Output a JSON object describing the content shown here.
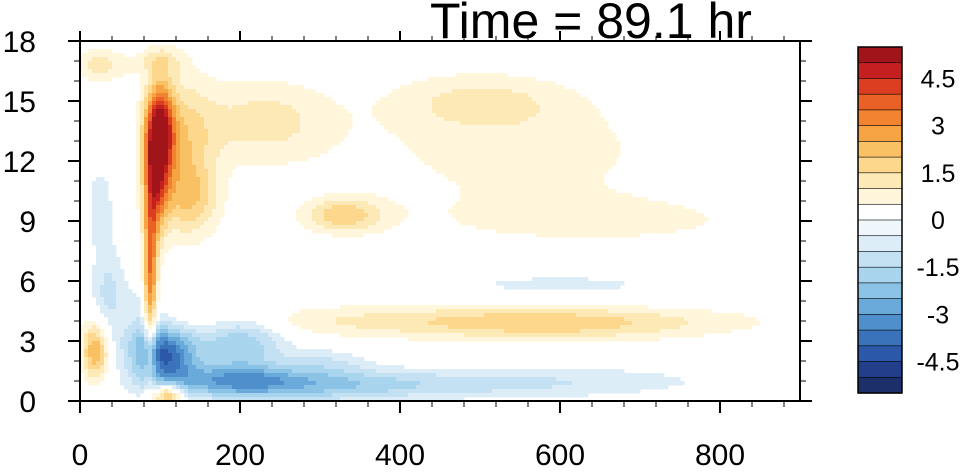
{
  "chart_data": {
    "type": "heatmap",
    "title": "Time = 89.1 hr",
    "xlabel": "",
    "ylabel": "",
    "xlim": [
      0,
      900
    ],
    "ylim": [
      0,
      18
    ],
    "x_ticks": [
      {
        "value": 0,
        "label": "0"
      },
      {
        "value": 200,
        "label": "200"
      },
      {
        "value": 400,
        "label": "400"
      },
      {
        "value": 600,
        "label": "600"
      },
      {
        "value": 800,
        "label": "800"
      }
    ],
    "y_ticks": [
      {
        "value": 0,
        "label": "0"
      },
      {
        "value": 3,
        "label": "3"
      },
      {
        "value": 6,
        "label": "6"
      },
      {
        "value": 9,
        "label": "9"
      },
      {
        "value": 12,
        "label": "12"
      },
      {
        "value": 15,
        "label": "15"
      },
      {
        "value": 18,
        "label": "18"
      }
    ],
    "colorbar": {
      "levels": [
        -5.5,
        -5,
        -4.5,
        -4,
        -3.5,
        -3,
        -2.5,
        -2,
        -1.5,
        -1,
        -0.5,
        0,
        0.5,
        1,
        1.5,
        2,
        2.5,
        3,
        3.5,
        4,
        4.5,
        5,
        5.5
      ],
      "colors": [
        "#1c2f6b",
        "#233f8c",
        "#2b58a8",
        "#3a73ba",
        "#4f8fcc",
        "#6aaada",
        "#8bc3e6",
        "#a8d4ee",
        "#c3e1f3",
        "#dcedf8",
        "#f0f7fc",
        "#ffffff",
        "#fff6dc",
        "#fde9b6",
        "#fcd78c",
        "#f9c064",
        "#f6a343",
        "#f28431",
        "#ea6125",
        "#db3d20",
        "#c4201f",
        "#a11419"
      ],
      "tick_labels": [
        {
          "value": 4.5,
          "label": "4.5"
        },
        {
          "value": 3,
          "label": "3"
        },
        {
          "value": 1.5,
          "label": "1.5"
        },
        {
          "value": 0,
          "label": "0"
        },
        {
          "value": -1.5,
          "label": "-1.5"
        },
        {
          "value": -3,
          "label": "-3"
        },
        {
          "value": -4.5,
          "label": "-4.5"
        }
      ]
    },
    "features": [
      {
        "x": 100,
        "y": 13.5,
        "sx": 12,
        "sy": 1.6,
        "amp": 4.5
      },
      {
        "x": 95,
        "y": 11.0,
        "sx": 10,
        "sy": 2.0,
        "amp": 3.0
      },
      {
        "x": 88,
        "y": 6.0,
        "sx": 6,
        "sy": 3.0,
        "amp": 3.5
      },
      {
        "x": 125,
        "y": 12.5,
        "sx": 30,
        "sy": 2.5,
        "amp": 1.8
      },
      {
        "x": 140,
        "y": 10.0,
        "sx": 25,
        "sy": 1.2,
        "amp": 1.2
      },
      {
        "x": 20,
        "y": 2.5,
        "sx": 12,
        "sy": 1.0,
        "amp": 2.8
      },
      {
        "x": 25,
        "y": 16.8,
        "sx": 25,
        "sy": 0.6,
        "amp": 1.2
      },
      {
        "x": 110,
        "y": 0.3,
        "sx": 12,
        "sy": 0.4,
        "amp": 3.0
      },
      {
        "x": 330,
        "y": 9.3,
        "sx": 35,
        "sy": 0.6,
        "amp": 1.8
      },
      {
        "x": 230,
        "y": 14.0,
        "sx": 60,
        "sy": 1.5,
        "amp": 1.2
      },
      {
        "x": 500,
        "y": 15.0,
        "sx": 80,
        "sy": 1.0,
        "amp": 1.0
      },
      {
        "x": 550,
        "y": 12.5,
        "sx": 150,
        "sy": 2.0,
        "amp": 0.7
      },
      {
        "x": 650,
        "y": 9.0,
        "sx": 180,
        "sy": 1.0,
        "amp": 0.6
      },
      {
        "x": 480,
        "y": 4.0,
        "sx": 250,
        "sy": 0.6,
        "amp": 1.2
      },
      {
        "x": 600,
        "y": 3.8,
        "sx": 120,
        "sy": 0.6,
        "amp": 0.9
      },
      {
        "x": 110,
        "y": 2.3,
        "sx": 25,
        "sy": 1.0,
        "amp": -3.5
      },
      {
        "x": 80,
        "y": 3.2,
        "sx": 20,
        "sy": 1.5,
        "amp": -1.5
      },
      {
        "x": 200,
        "y": 3.0,
        "sx": 40,
        "sy": 1.0,
        "amp": -2.0
      },
      {
        "x": 190,
        "y": 1.0,
        "sx": 60,
        "sy": 0.6,
        "amp": -2.5
      },
      {
        "x": 300,
        "y": 0.8,
        "sx": 80,
        "sy": 0.6,
        "amp": -1.5
      },
      {
        "x": 35,
        "y": 5.0,
        "sx": 15,
        "sy": 2.0,
        "amp": -1.2
      },
      {
        "x": 25,
        "y": 9.8,
        "sx": 12,
        "sy": 1.5,
        "amp": -0.8
      },
      {
        "x": 450,
        "y": 0.8,
        "sx": 120,
        "sy": 0.5,
        "amp": -0.8
      },
      {
        "x": 620,
        "y": 1.0,
        "sx": 150,
        "sy": 0.6,
        "amp": -0.7
      },
      {
        "x": 600,
        "y": 5.8,
        "sx": 150,
        "sy": 0.6,
        "amp": -0.6
      },
      {
        "x": 100,
        "y": 17.0,
        "sx": 20,
        "sy": 0.5,
        "amp": 1.0
      },
      {
        "x": 310,
        "y": 2.0,
        "sx": 35,
        "sy": 0.5,
        "amp": -0.8
      }
    ]
  }
}
